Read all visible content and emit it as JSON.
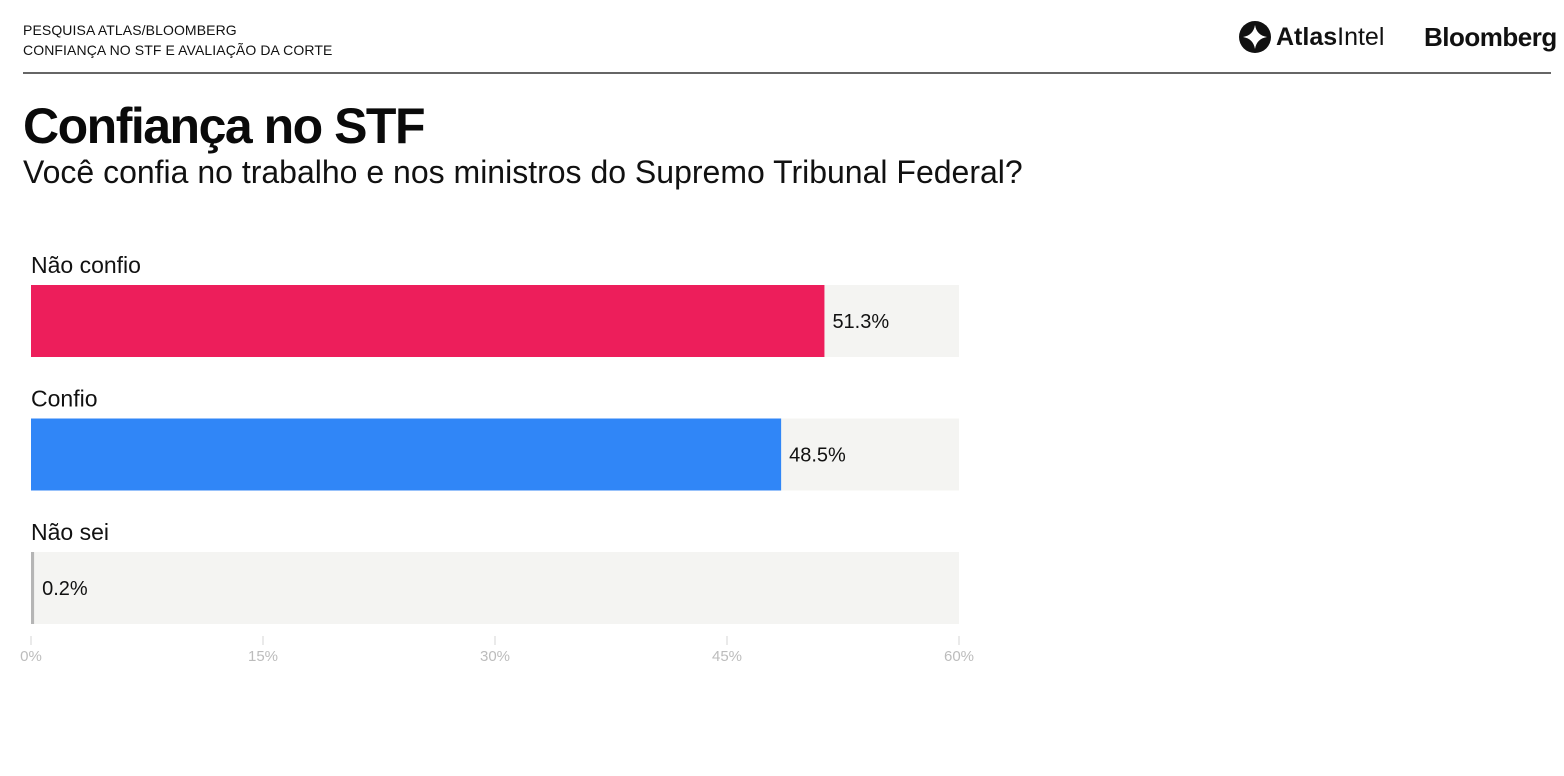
{
  "header": {
    "kicker_line1": "PESQUISA ATLAS/BLOOMBERG",
    "kicker_line2": "CONFIANÇA NO STF E AVALIAÇÃO DA CORTE",
    "brand_atlas_bold": "Atlas",
    "brand_atlas_light": "Intel",
    "brand_atlas_icon": "atlasintel-logo-icon",
    "brand_bloomberg": "Bloomberg"
  },
  "chart_data": {
    "type": "bar",
    "orientation": "horizontal",
    "title": "Confiança no STF",
    "subtitle": "Você confia no trabalho e nos ministros do Supremo Tribunal Federal?",
    "categories": [
      "Não confio",
      "Confio",
      "Não sei"
    ],
    "values": [
      51.3,
      48.5,
      0.2
    ],
    "value_labels": [
      "51.3%",
      "48.5%",
      "0.2%"
    ],
    "colors": [
      "#ed1e5b",
      "#3086f7",
      "#b5b5b5"
    ],
    "track_color": "#f4f4f2",
    "xlim": [
      0,
      60
    ],
    "xticks": [
      0,
      15,
      30,
      45,
      60
    ],
    "xtick_labels": [
      "0%",
      "15%",
      "30%",
      "45%",
      "60%"
    ],
    "xlabel": "",
    "ylabel": "",
    "grid": false,
    "legend": "none"
  }
}
